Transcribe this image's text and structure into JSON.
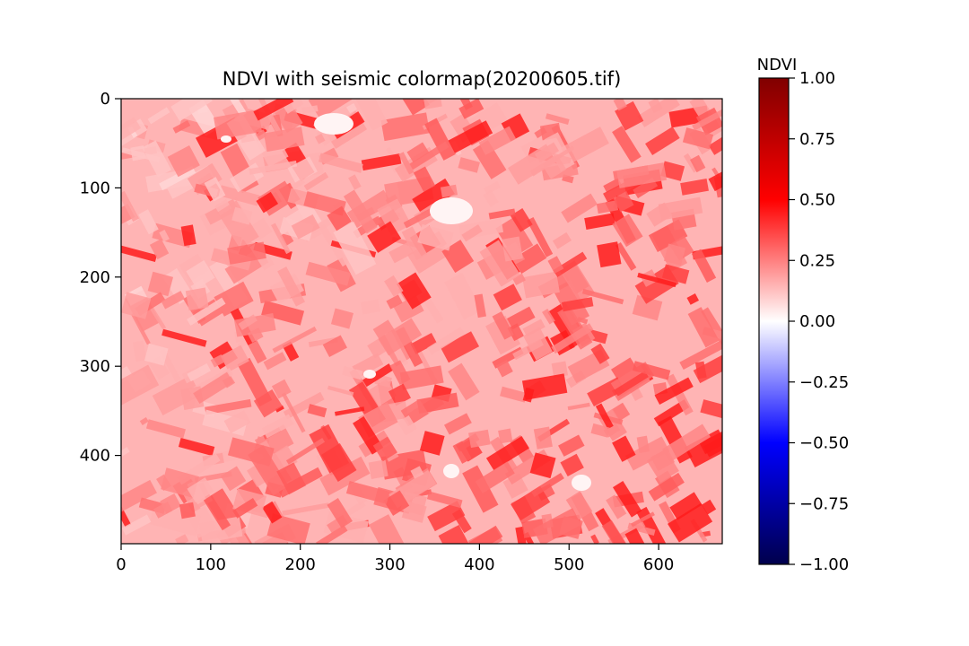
{
  "chart_data": {
    "type": "heatmap",
    "title": "NDVI with seismic colormap(20200605.tif)",
    "x_ticks": [
      0,
      100,
      200,
      300,
      400,
      500,
      600
    ],
    "y_ticks": [
      0,
      100,
      200,
      300,
      400
    ],
    "xlim": [
      0,
      671
    ],
    "ylim": [
      499,
      0
    ],
    "colormap": "seismic",
    "colorbar": {
      "label": "NDVI",
      "range": [
        -1.0,
        1.0
      ],
      "ticks": [
        1.0,
        0.75,
        0.5,
        0.25,
        0.0,
        -0.25,
        -0.5,
        -0.75,
        -1.0
      ],
      "tick_labels": [
        "1.00",
        "0.75",
        "0.50",
        "0.25",
        "0.00",
        "−0.25",
        "−0.50",
        "−0.75",
        "−1.00"
      ]
    },
    "colors": {
      "seismic_stops": [
        "#00004c",
        "#0000ff",
        "#ffffff",
        "#ff0000",
        "#800000"
      ],
      "image_base": "#ffb4b4",
      "strong_field": "#ff1c1c",
      "bare_patch": "#fff4f4"
    }
  }
}
